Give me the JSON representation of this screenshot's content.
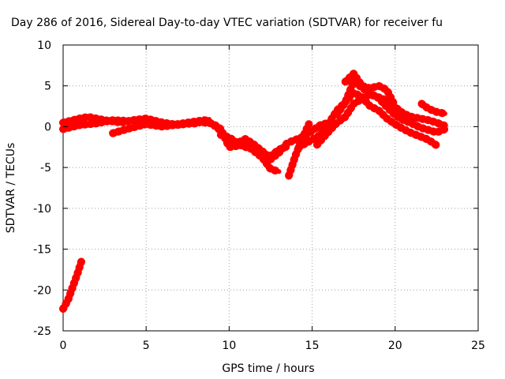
{
  "chart_data": {
    "type": "line",
    "title": "Day 286 of 2016, Sidereal Day-to-day VTEC variation (SDTVAR) for receiver fu",
    "xlabel": "GPS time / hours",
    "ylabel": "SDTVAR / TECUs",
    "xlim": [
      0,
      25
    ],
    "ylim": [
      -25,
      10
    ],
    "xticks": [
      0,
      5,
      10,
      15,
      20,
      25
    ],
    "yticks": [
      -25,
      -20,
      -15,
      -10,
      -5,
      0,
      5,
      10
    ],
    "grid": true,
    "color": "#ff0000",
    "series": [
      {
        "name": "s1",
        "x": [
          0.0,
          0.3,
          0.6,
          0.9,
          1.1
        ],
        "y": [
          -22.3,
          -21.2,
          -19.5,
          -17.8,
          -16.5
        ]
      },
      {
        "name": "s2",
        "x": [
          0.0,
          1.0,
          1.5,
          2.5,
          3.5,
          4.5,
          5.5,
          6.5,
          7.5,
          8.5,
          9.0,
          9.5,
          10.0,
          10.5,
          11.0,
          11.5,
          12.0,
          12.5,
          13.0,
          13.5,
          14.0,
          14.5,
          15.0,
          15.5,
          16.0
        ],
        "y": [
          0.5,
          1.0,
          1.2,
          0.8,
          0.5,
          0.9,
          0.6,
          0.2,
          0.5,
          0.8,
          0.3,
          -0.5,
          -1.8,
          -2.0,
          -1.5,
          -2.2,
          -3.0,
          -4.0,
          -3.2,
          -2.0,
          -1.6,
          -1.2,
          -0.5,
          0.2,
          0.5
        ]
      },
      {
        "name": "s3",
        "x": [
          0.0,
          1.0,
          2.0,
          3.0,
          4.0,
          5.0,
          6.0,
          7.0,
          8.0,
          9.0,
          9.5,
          10.0,
          11.0,
          12.0,
          12.5,
          13.0
        ],
        "y": [
          -0.3,
          0.2,
          0.4,
          0.8,
          0.7,
          1.0,
          0.5,
          0.2,
          0.6,
          0.4,
          -0.3,
          -2.5,
          -2.2,
          -3.8,
          -5.2,
          -5.5
        ]
      },
      {
        "name": "s4",
        "x": [
          3.0,
          4.0,
          5.0,
          6.0,
          7.0,
          8.0,
          8.8
        ],
        "y": [
          -0.8,
          -0.2,
          0.3,
          0.0,
          0.3,
          0.4,
          0.9
        ]
      },
      {
        "name": "s5",
        "x": [
          9.5,
          10.0,
          10.5,
          11.0,
          11.5,
          12.0,
          12.5,
          13.0,
          13.5
        ],
        "y": [
          -1.0,
          -1.3,
          -2.0,
          -2.5,
          -2.8,
          -3.3,
          -3.6,
          -2.8,
          -2.4
        ]
      },
      {
        "name": "s6",
        "x": [
          13.6,
          14.0,
          14.4,
          14.8
        ],
        "y": [
          -6.0,
          -3.5,
          -1.5,
          0.3
        ]
      },
      {
        "name": "s7",
        "x": [
          14.2,
          15.0,
          15.5,
          16.0,
          16.5,
          17.0,
          17.5,
          18.0,
          18.5,
          19.0,
          19.5,
          20.0,
          20.5,
          21.0,
          21.5,
          22.0,
          22.5
        ],
        "y": [
          -2.5,
          -1.6,
          -1.0,
          0.4,
          2.0,
          3.0,
          4.2,
          3.6,
          2.5,
          2.0,
          1.0,
          0.3,
          -0.3,
          -0.8,
          -1.2,
          -1.6,
          -2.3
        ]
      },
      {
        "name": "s8",
        "x": [
          15.3,
          16.0,
          16.5,
          17.0,
          17.5,
          18.0,
          18.5,
          19.0,
          19.5,
          20.0,
          20.5,
          21.0,
          21.5,
          22.0,
          22.5,
          23.0
        ],
        "y": [
          -2.2,
          -0.6,
          0.5,
          1.2,
          2.8,
          3.4,
          4.0,
          3.5,
          2.4,
          1.4,
          0.8,
          0.4,
          -0.1,
          -0.4,
          -0.7,
          -0.3
        ]
      },
      {
        "name": "s9",
        "x": [
          16.5,
          17.0,
          17.5,
          18.0,
          18.5,
          19.0,
          19.5,
          20.0,
          20.5,
          21.0,
          21.5,
          22.0,
          22.5,
          23.0
        ],
        "y": [
          1.5,
          3.0,
          5.5,
          4.8,
          4.0,
          3.6,
          3.2,
          2.4,
          1.6,
          1.2,
          1.0,
          0.8,
          0.5,
          0.1
        ]
      },
      {
        "name": "s10",
        "x": [
          17.0,
          17.5,
          18.0,
          18.5,
          19.0,
          19.5,
          20.0
        ],
        "y": [
          5.5,
          6.5,
          5.0,
          4.7,
          5.0,
          4.5,
          2.5
        ]
      },
      {
        "name": "s11",
        "x": [
          21.6,
          22.0,
          22.5,
          23.0
        ],
        "y": [
          2.8,
          2.2,
          1.8,
          1.6
        ]
      }
    ]
  }
}
